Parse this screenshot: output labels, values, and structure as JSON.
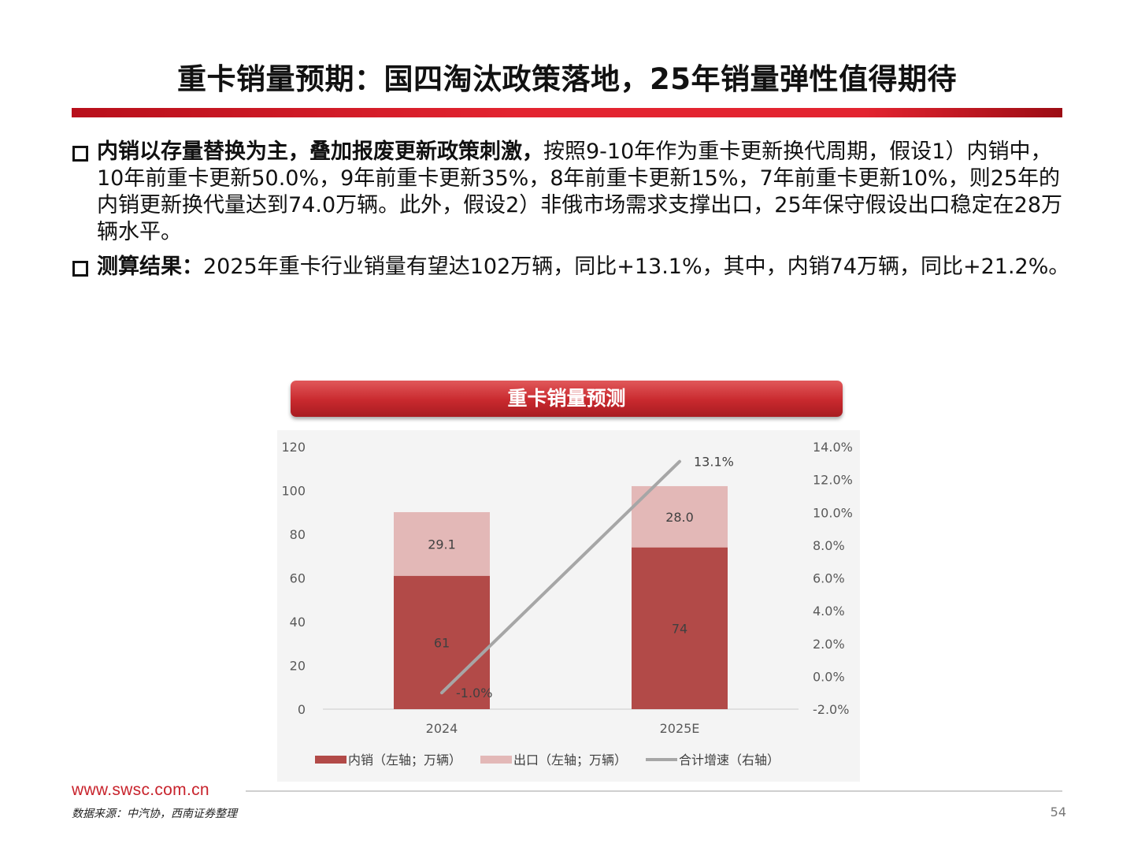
{
  "title": "重卡销量预期：国四淘汰政策落地，25年销量弹性值得期待",
  "bullets": [
    {
      "bold": "内销以存量替换为主，叠加报废更新政策刺激，",
      "text": "按照9-10年作为重卡更新换代周期，假设1）内销中，10年前重卡更新50.0%，9年前重卡更新35%，8年前重卡更新15%，7年前重卡更新10%，则25年的内销更新换代量达到74.0万辆。此外，假设2）非俄市场需求支撑出口，25年保守假设出口稳定在28万辆水平。"
    },
    {
      "bold": "测算结果：",
      "text": "2025年重卡行业销量有望达102万辆，同比+13.1%，其中，内销74万辆，同比+21.2%。"
    }
  ],
  "chart_banner": "重卡销量预测",
  "chart_data": {
    "type": "bar",
    "stacked": true,
    "categories": [
      "2024",
      "2025E"
    ],
    "series": [
      {
        "name": "内销（左轴；万辆）",
        "axis": "left",
        "values": [
          61,
          74
        ],
        "labels": [
          "61",
          "74"
        ],
        "color": "#b24a48"
      },
      {
        "name": "出口（左轴；万辆）",
        "axis": "left",
        "values": [
          29.1,
          28.0
        ],
        "labels": [
          "29.1",
          "28.0"
        ],
        "color": "#e3b8b7"
      },
      {
        "name": "合计增速（右轴）",
        "type": "line",
        "axis": "right",
        "values": [
          -1.0,
          13.1
        ],
        "labels": [
          "-1.0%",
          "13.1%"
        ],
        "color": "#a6a6a6"
      }
    ],
    "y_left": {
      "min": 0,
      "max": 120,
      "ticks": [
        "0",
        "20",
        "40",
        "60",
        "80",
        "100",
        "120"
      ]
    },
    "y_right": {
      "min": -2,
      "max": 14,
      "ticks": [
        "-2.0%",
        "0.0%",
        "2.0%",
        "4.0%",
        "6.0%",
        "8.0%",
        "10.0%",
        "12.0%",
        "14.0%"
      ]
    },
    "grid": false,
    "legend": "bottom"
  },
  "footer": {
    "website": "www.swsc.com.cn",
    "source": "数据来源：中汽协，西南证券整理",
    "page": "54"
  }
}
